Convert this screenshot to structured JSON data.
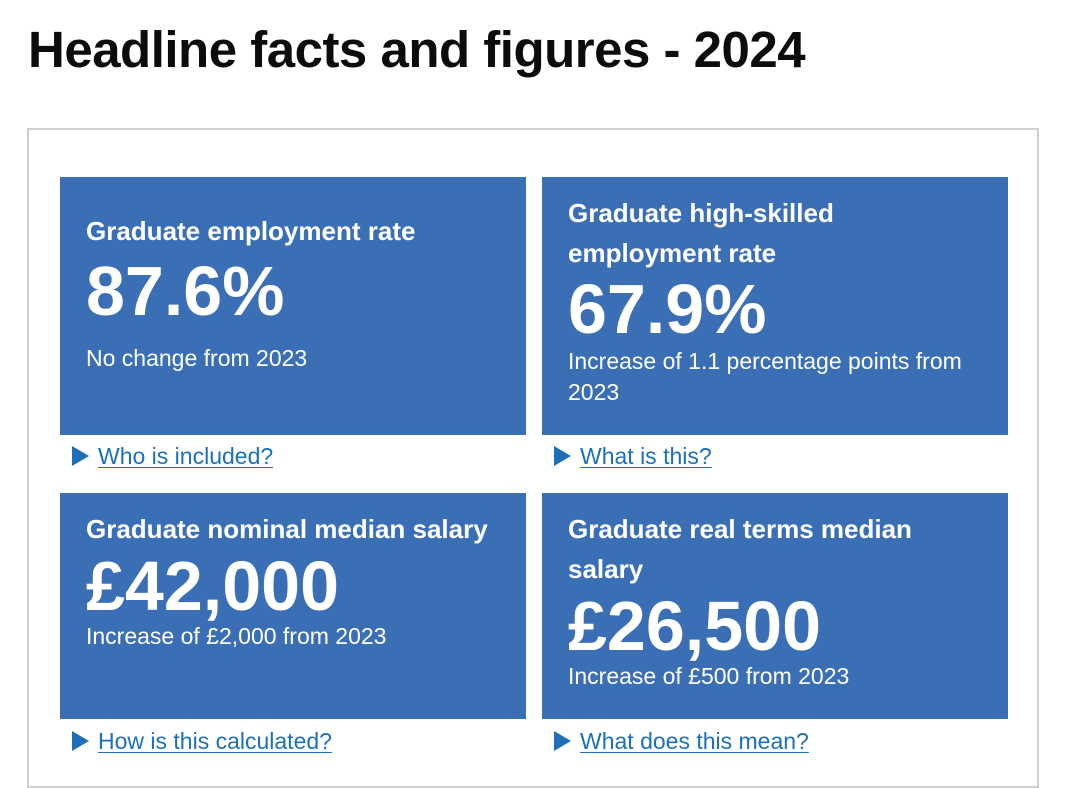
{
  "page": {
    "title": "Headline facts and figures - 2024"
  },
  "tiles": [
    {
      "heading": "Graduate employment rate",
      "value": "87.6%",
      "caption": "No change from 2023",
      "details_link": "Who is included?"
    },
    {
      "heading": "Graduate high-skilled employment rate",
      "value": "67.9%",
      "caption": "Increase of 1.1 percentage points from 2023",
      "details_link": "What is this?"
    },
    {
      "heading": "Graduate nominal median salary",
      "value": "£42,000",
      "caption": "Increase of £2,000 from 2023",
      "details_link": "How is this calculated?"
    },
    {
      "heading": "Graduate real terms median salary",
      "value": "£26,500",
      "caption": "Increase of £500 from 2023",
      "details_link": "What does this mean?"
    }
  ],
  "colors": {
    "tile_background": "#3b6fb5",
    "link": "#1d70b8",
    "text": "#0b0c0c"
  },
  "icons": {
    "details_toggle": "triangle-right-icon"
  }
}
